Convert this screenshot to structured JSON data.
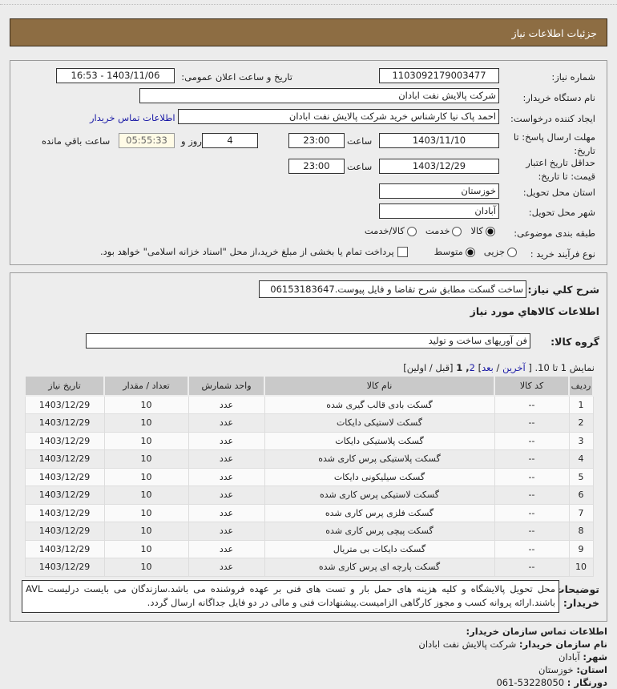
{
  "header": {
    "title": "جزئیات اطلاعات نیاز"
  },
  "form": {
    "need_number_label": "شماره نیاز:",
    "need_number": "1103092179003477",
    "announce_label": "تاریخ و ساعت اعلان عمومی:",
    "announce_value": "1403/11/06 - 16:53",
    "buyer_org_label": "نام دستگاه خریدار:",
    "buyer_org": "شرکت پالایش نفت ابادان",
    "creator_label": "ایجاد کننده درخواست:",
    "creator": "احمد پاک نیا کارشناس خرید شرکت پالایش نفت ابادان",
    "contact_link": "اطلاعات تماس خریدار",
    "deadline_label": "مهلت ارسال پاسخ: تا تاریخ:",
    "deadline_date": "1403/11/10",
    "time_label": "ساعت",
    "deadline_time": "23:00",
    "days": "4",
    "days_label": "روز و",
    "remaining": "05:55:33",
    "remaining_label": "ساعت باقي مانده",
    "validity_label": "حداقل تاریخ اعتبار قیمت: تا تاریخ:",
    "validity_date": "1403/12/29",
    "validity_time": "23:00",
    "province_label": "استان محل تحویل:",
    "province": "خوزستان",
    "city_label": "شهر محل تحویل:",
    "city": "آبادان",
    "category_label": "طبقه بندی موضوعی:",
    "category_options": [
      "کالا",
      "خدمت",
      "کالا/خدمت"
    ],
    "category_selected": "کالا",
    "process_label": "نوع فرآیند خرید :",
    "process_options": [
      "جزیی",
      "متوسط"
    ],
    "process_selected": "متوسط",
    "payment_note": "پرداخت تمام یا بخشی از مبلغ خرید،از محل \"اسناد خزانه اسلامی\" خواهد بود."
  },
  "details": {
    "desc_label": "شرح كلي نياز:",
    "desc": "ساخت گسکت مطابق شرح تقاضا و فایل پیوست.06153183647",
    "goods_title": "اطلاعات كالاهاي مورد نياز",
    "group_label": "گروه کالا:",
    "group": "فن آوریهای ساخت و تولید",
    "pager": {
      "prefix": "نمایش 1 تا 10. [",
      "last": "آخرین",
      "sep": "/",
      "next": "بعد",
      "close": "]",
      "page2": "2",
      "page1": ", 1",
      "rest": "[قبل / اولین]"
    },
    "columns": [
      "ردیف",
      "کد کالا",
      "نام کالا",
      "واحد شمارش",
      "تعداد / مقدار",
      "تاریخ نیاز"
    ],
    "rows": [
      [
        "1",
        "--",
        "گسکت بادی قالب گیری شده",
        "عدد",
        "10",
        "1403/12/29"
      ],
      [
        "2",
        "--",
        "گسکت لاستیکی دایکات",
        "عدد",
        "10",
        "1403/12/29"
      ],
      [
        "3",
        "--",
        "گسکت پلاستیکی دایکات",
        "عدد",
        "10",
        "1403/12/29"
      ],
      [
        "4",
        "--",
        "گسکت پلاستیکی پرس کاری شده",
        "عدد",
        "10",
        "1403/12/29"
      ],
      [
        "5",
        "--",
        "گسکت سیلیکونی دایکات",
        "عدد",
        "10",
        "1403/12/29"
      ],
      [
        "6",
        "--",
        "گسکت لاستیکی پرس کاری شده",
        "عدد",
        "10",
        "1403/12/29"
      ],
      [
        "7",
        "--",
        "گسکت فلزی پرس کاری شده",
        "عدد",
        "10",
        "1403/12/29"
      ],
      [
        "8",
        "--",
        "گسکت پیچی پرس کاری شده",
        "عدد",
        "10",
        "1403/12/29"
      ],
      [
        "9",
        "--",
        "گسکت دایکات بی متریال",
        "عدد",
        "10",
        "1403/12/29"
      ],
      [
        "10",
        "--",
        "گسکت پارچه ای پرس کاری شده",
        "عدد",
        "10",
        "1403/12/29"
      ]
    ],
    "notes_label": "توضیحات خریدار:",
    "notes": "محل تحویل پالایشگاه و کلیه هزینه های حمل بار و تست های فنی بر عهده فروشنده می باشد.سازندگان می بایست درلیست AVL باشند.ارائه پروانه کسب و مجوز کارگاهی الزامیست.پیشنهادات فنی و مالی در دو فایل جداگانه ارسال گردد."
  },
  "contact": {
    "title": "اطلاعات تماس سازمان خریدار:",
    "org_label": "نام سازمان خریدار:",
    "org": "شرکت پالایش نفت ابادان",
    "city_label": "شهر:",
    "city": "آبادان",
    "province_label": "استان:",
    "province": "خوزستان",
    "phone_label": "دورنگار :",
    "phone": "061-53228050"
  }
}
